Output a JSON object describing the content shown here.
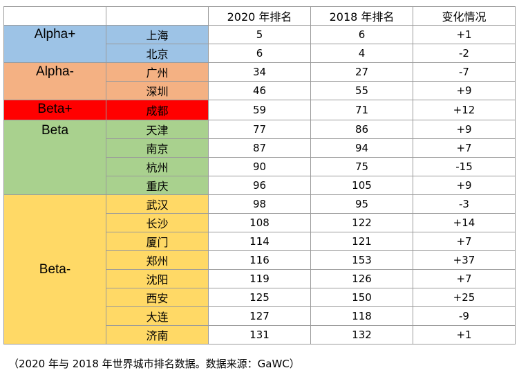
{
  "header": {
    "blank": "",
    "col_city": "",
    "col_rank_2020": "2020 年排名",
    "col_rank_2018": "2018 年排名",
    "col_change": "变化情况"
  },
  "colors": {
    "alpha_plus": "#9dc3e6",
    "alpha_minus": "#f4b183",
    "beta_plus": "#ff0000",
    "beta": "#a9d18e",
    "beta_minus": "#ffd966"
  },
  "groups": [
    {
      "tier": "Alpha+",
      "color_key": "alpha_plus",
      "rows": [
        {
          "city": "上海",
          "rank2020": "5",
          "rank2018": "6",
          "change": "+1"
        },
        {
          "city": "北京",
          "rank2020": "6",
          "rank2018": "4",
          "change": "-2"
        }
      ]
    },
    {
      "tier": "Alpha-",
      "color_key": "alpha_minus",
      "rows": [
        {
          "city": "广州",
          "rank2020": "34",
          "rank2018": "27",
          "change": "-7"
        },
        {
          "city": "深圳",
          "rank2020": "46",
          "rank2018": "55",
          "change": "+9"
        }
      ]
    },
    {
      "tier": "Beta+",
      "color_key": "beta_plus",
      "rows": [
        {
          "city": "成都",
          "rank2020": "59",
          "rank2018": "71",
          "change": "+12"
        }
      ]
    },
    {
      "tier": "Beta",
      "color_key": "beta",
      "rows": [
        {
          "city": "天津",
          "rank2020": "77",
          "rank2018": "86",
          "change": "+9"
        },
        {
          "city": "南京",
          "rank2020": "87",
          "rank2018": "94",
          "change": "+7"
        },
        {
          "city": "杭州",
          "rank2020": "90",
          "rank2018": "75",
          "change": "-15"
        },
        {
          "city": "重庆",
          "rank2020": "96",
          "rank2018": "105",
          "change": "+9"
        }
      ]
    },
    {
      "tier": "Beta-",
      "color_key": "beta_minus",
      "rows": [
        {
          "city": "武汉",
          "rank2020": "98",
          "rank2018": "95",
          "change": "-3"
        },
        {
          "city": "长沙",
          "rank2020": "108",
          "rank2018": "122",
          "change": "+14"
        },
        {
          "city": "厦门",
          "rank2020": "114",
          "rank2018": "121",
          "change": "+7"
        },
        {
          "city": "郑州",
          "rank2020": "116",
          "rank2018": "153",
          "change": "+37"
        },
        {
          "city": "沈阳",
          "rank2020": "119",
          "rank2018": "126",
          "change": "+7"
        },
        {
          "city": "西安",
          "rank2020": "125",
          "rank2018": "150",
          "change": "+25"
        },
        {
          "city": "大连",
          "rank2020": "127",
          "rank2018": "118",
          "change": "-9"
        },
        {
          "city": "济南",
          "rank2020": "131",
          "rank2018": "132",
          "change": "+1"
        }
      ]
    }
  ],
  "caption": "（2020 年与 2018 年世界城市排名数据。数据来源：GaWC）"
}
